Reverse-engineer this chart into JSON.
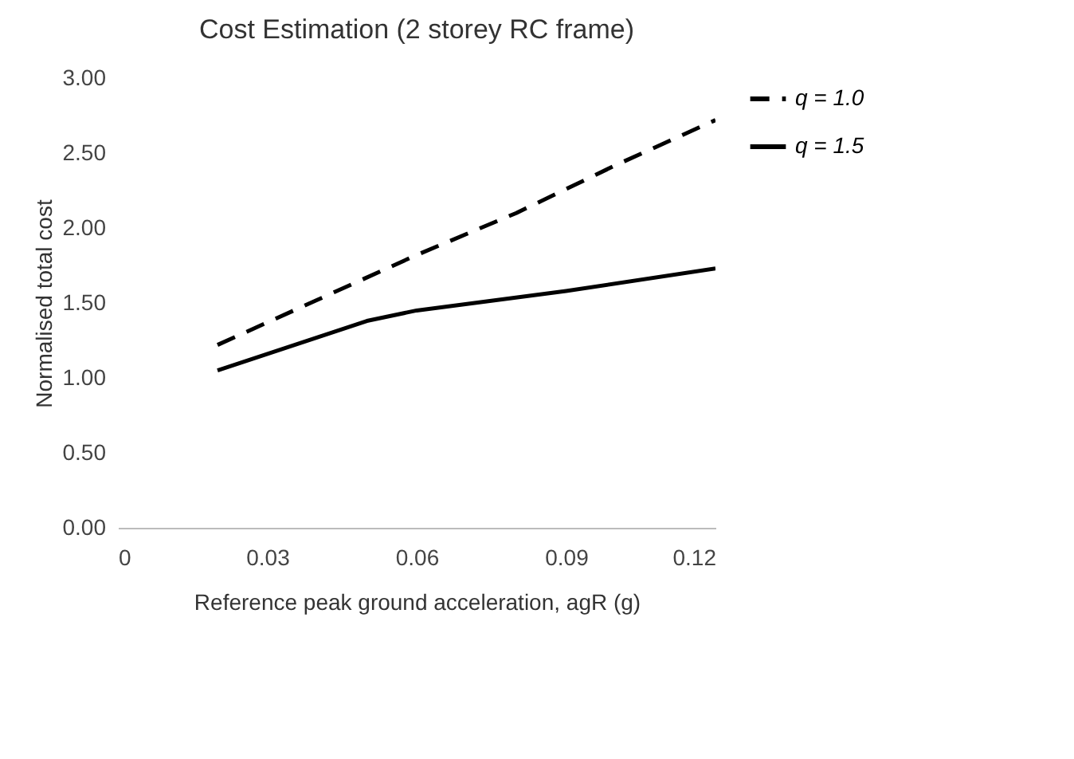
{
  "chart_data": {
    "type": "line",
    "title": "Cost Estimation (2 storey RC frame)",
    "xlabel": "Reference peak ground acceleration, agR (g)",
    "ylabel": "Normalised total cost",
    "xlim": [
      0,
      0.12
    ],
    "xticks": [
      0,
      0.03,
      0.06,
      0.09,
      0.12
    ],
    "ylim": [
      0,
      3
    ],
    "yticks": [
      {
        "value": 0,
        "label": "0.00"
      },
      {
        "value": 0.5,
        "label": "0.50"
      },
      {
        "value": 1,
        "label": "1.00"
      },
      {
        "value": 1.5,
        "label": "1.50"
      },
      {
        "value": 2,
        "label": "2.00"
      },
      {
        "value": 2.5,
        "label": "2.50"
      },
      {
        "value": 3,
        "label": "3.00"
      }
    ],
    "grid": false,
    "legend": "right",
    "marker": "none",
    "series": [
      {
        "name": "q = 1.0",
        "color": "#000000",
        "line_style": "dashed",
        "x": [
          0.02,
          0.04,
          0.06,
          0.08,
          0.1,
          0.12
        ],
        "values": [
          1.22,
          1.52,
          1.82,
          2.1,
          2.42,
          2.72
        ]
      },
      {
        "name": "q = 1.5",
        "color": "#000000",
        "line_style": "solid",
        "x": [
          0.02,
          0.05,
          0.06,
          0.09,
          0.12
        ],
        "values": [
          1.05,
          1.38,
          1.45,
          1.58,
          1.73
        ]
      }
    ]
  }
}
